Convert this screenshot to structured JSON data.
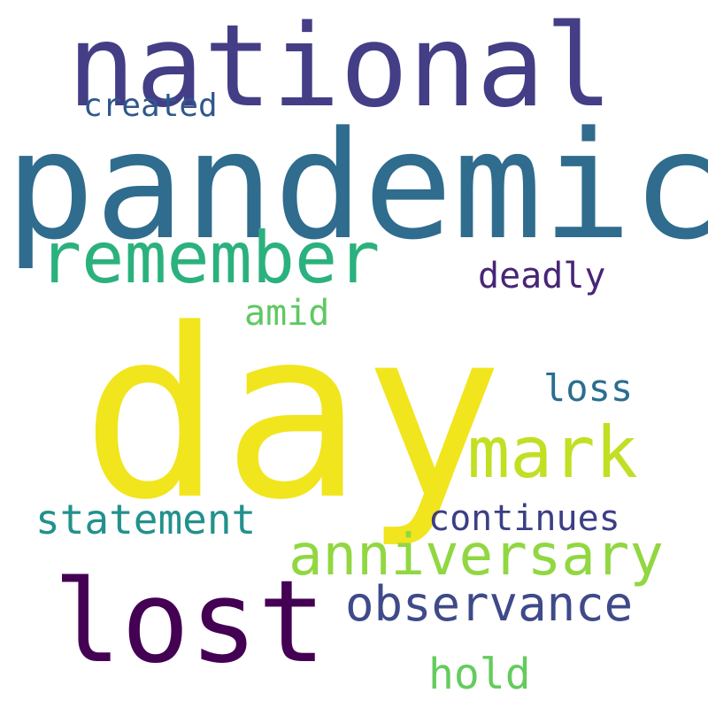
{
  "words": {
    "national": {
      "text": "national",
      "color": "#433e85"
    },
    "created": {
      "text": "created",
      "color": "#30578c"
    },
    "pandemic": {
      "text": "pandemic",
      "color": "#2f6c8e"
    },
    "remember": {
      "text": "remember",
      "color": "#2bb17d"
    },
    "deadly": {
      "text": "deadly",
      "color": "#482576"
    },
    "amid": {
      "text": "amid",
      "color": "#5ec962"
    },
    "day": {
      "text": "day",
      "color": "#f1e51d"
    },
    "loss": {
      "text": "loss",
      "color": "#2b6e8e"
    },
    "mark": {
      "text": "mark",
      "color": "#c2df23"
    },
    "statement": {
      "text": "statement",
      "color": "#22918c"
    },
    "continues": {
      "text": "continues",
      "color": "#3b3f85"
    },
    "anniversary": {
      "text": "anniversary",
      "color": "#91d742"
    },
    "lost": {
      "text": "lost",
      "color": "#440154"
    },
    "observance": {
      "text": "observance",
      "color": "#3e4a89"
    },
    "hold": {
      "text": "hold",
      "color": "#65cb5e"
    }
  }
}
